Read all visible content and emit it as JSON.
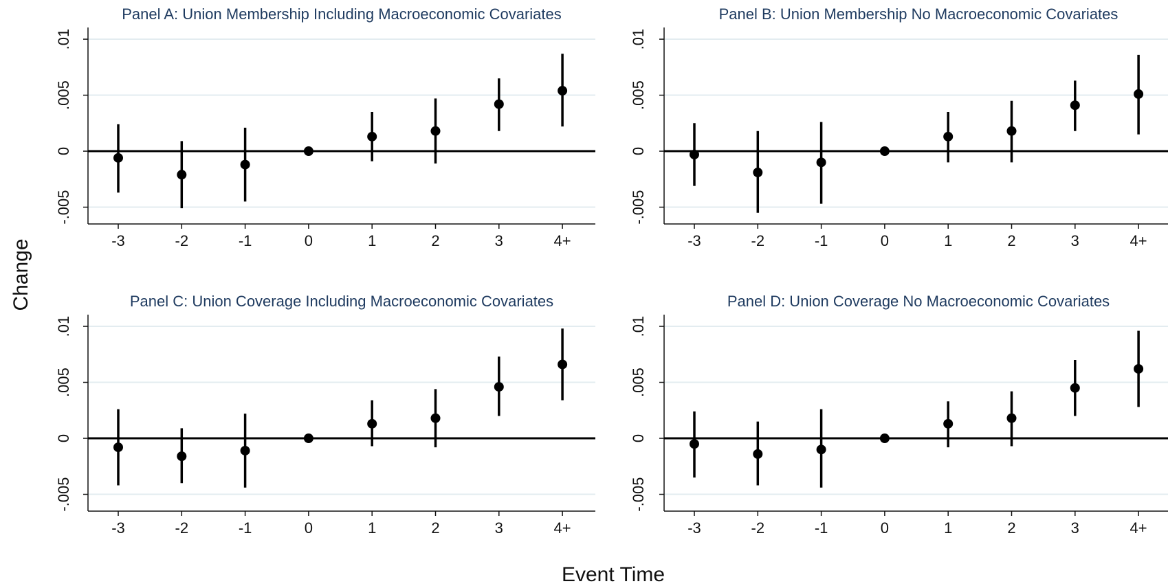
{
  "figure": {
    "ylabel": "Change",
    "xlabel": "Event Time"
  },
  "chart_data": [
    {
      "type": "scatter",
      "title": "Panel A: Union Membership Including Macroeconomic Covariates",
      "categories": [
        "-3",
        "-2",
        "-1",
        "0",
        "1",
        "2",
        "3",
        "4+"
      ],
      "values": [
        -0.0006,
        -0.0021,
        -0.0012,
        0.0,
        0.0013,
        0.0018,
        0.0042,
        0.0054
      ],
      "ci_low": [
        -0.0037,
        -0.0051,
        -0.0045,
        0.0,
        -0.0009,
        -0.0011,
        0.0018,
        0.0022
      ],
      "ci_high": [
        0.0024,
        0.0009,
        0.0021,
        0.0,
        0.0035,
        0.0047,
        0.0065,
        0.0087
      ],
      "yticks": [
        ".01",
        ".005",
        "0",
        "-.005"
      ],
      "ytick_values": [
        0.01,
        0.005,
        0,
        -0.005
      ],
      "ylim": [
        -0.0065,
        0.0108
      ],
      "grid": true,
      "zero_line": true
    },
    {
      "type": "scatter",
      "title": "Panel B: Union Membership No Macroeconomic Covariates",
      "categories": [
        "-3",
        "-2",
        "-1",
        "0",
        "1",
        "2",
        "3",
        "4+"
      ],
      "values": [
        -0.0003,
        -0.0019,
        -0.001,
        0.0,
        0.0013,
        0.0018,
        0.0041,
        0.0051
      ],
      "ci_low": [
        -0.0031,
        -0.0055,
        -0.0047,
        0.0,
        -0.001,
        -0.001,
        0.0018,
        0.0015
      ],
      "ci_high": [
        0.0025,
        0.0018,
        0.0026,
        0.0,
        0.0035,
        0.0045,
        0.0063,
        0.0086
      ],
      "yticks": [
        ".01",
        ".005",
        "0",
        "-.005"
      ],
      "ytick_values": [
        0.01,
        0.005,
        0,
        -0.005
      ],
      "ylim": [
        -0.0065,
        0.0108
      ],
      "grid": true,
      "zero_line": true
    },
    {
      "type": "scatter",
      "title": "Panel C: Union Coverage Including Macroeconomic Covariates",
      "categories": [
        "-3",
        "-2",
        "-1",
        "0",
        "1",
        "2",
        "3",
        "4+"
      ],
      "values": [
        -0.0008,
        -0.0016,
        -0.0011,
        0.0,
        0.0013,
        0.0018,
        0.0046,
        0.0066
      ],
      "ci_low": [
        -0.0042,
        -0.004,
        -0.0044,
        0.0,
        -0.0007,
        -0.0008,
        0.002,
        0.0034
      ],
      "ci_high": [
        0.0026,
        0.0009,
        0.0022,
        0.0,
        0.0034,
        0.0044,
        0.0073,
        0.0098
      ],
      "yticks": [
        ".01",
        ".005",
        "0",
        "-.005"
      ],
      "ytick_values": [
        0.01,
        0.005,
        0,
        -0.005
      ],
      "ylim": [
        -0.0065,
        0.0108
      ],
      "grid": true,
      "zero_line": true
    },
    {
      "type": "scatter",
      "title": "Panel D: Union Coverage No Macroeconomic Covariates",
      "categories": [
        "-3",
        "-2",
        "-1",
        "0",
        "1",
        "2",
        "3",
        "4+"
      ],
      "values": [
        -0.0005,
        -0.0014,
        -0.001,
        0.0,
        0.0013,
        0.0018,
        0.0045,
        0.0062
      ],
      "ci_low": [
        -0.0035,
        -0.0042,
        -0.0044,
        0.0,
        -0.0008,
        -0.0007,
        0.002,
        0.0028
      ],
      "ci_high": [
        0.0024,
        0.0015,
        0.0026,
        0.0,
        0.0033,
        0.0042,
        0.007,
        0.0096
      ],
      "yticks": [
        ".01",
        ".005",
        "0",
        "-.005"
      ],
      "ytick_values": [
        0.01,
        0.005,
        0,
        -0.005
      ],
      "ylim": [
        -0.0065,
        0.0108
      ],
      "grid": true,
      "zero_line": true
    }
  ]
}
